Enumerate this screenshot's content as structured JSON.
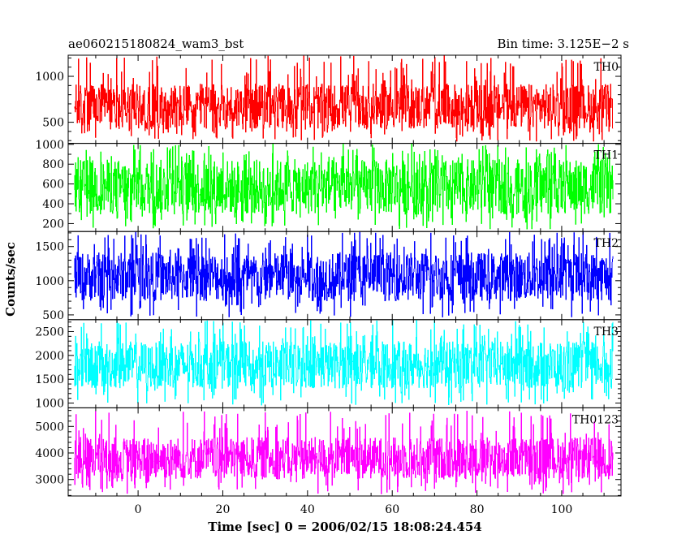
{
  "chart_data": {
    "type": "line",
    "title_left": "ae060215180824_wam3_bst",
    "title_right": "Bin time: 3.125E−2 s",
    "ylabel": "Counts/sec",
    "xlabel": "Time [sec] 0 = 2006/02/15 18:08:24.454",
    "xlim": [
      -16.5,
      114
    ],
    "x_range": [
      -15,
      112
    ],
    "xticks": [
      0,
      20,
      40,
      60,
      80,
      100
    ],
    "xtick_labels": [
      "0",
      "20",
      "40",
      "60",
      "80",
      "100"
    ],
    "panels": [
      {
        "name": "TH0",
        "color": "#ff0000",
        "ylim": [
          270,
          1230
        ],
        "yticks": [
          500,
          1000
        ],
        "yticks_minor_step": 100,
        "ytick_labels": [
          "500",
          "1000"
        ],
        "mean": 650,
        "band_low": 420,
        "band_high": 920,
        "min": 290,
        "max": 1230
      },
      {
        "name": "TH1",
        "color": "#00ff00",
        "ylim": [
          120,
          1010
        ],
        "yticks": [
          200,
          400,
          600,
          800,
          1000
        ],
        "yticks_minor_step": 100,
        "ytick_labels": [
          "200",
          "400",
          "600",
          "800",
          "1000"
        ],
        "mean": 540,
        "band_low": 290,
        "band_high": 850,
        "min": 140,
        "max": 1010
      },
      {
        "name": "TH2",
        "color": "#0000ff",
        "ylim": [
          430,
          1720
        ],
        "yticks": [
          500,
          1000,
          1500
        ],
        "yticks_minor_step": 100,
        "ytick_labels": [
          "500",
          "1000",
          "1500"
        ],
        "mean": 1040,
        "band_low": 700,
        "band_high": 1420,
        "min": 460,
        "max": 1720
      },
      {
        "name": "TH3",
        "color": "#00ffff",
        "ylim": [
          900,
          2750
        ],
        "yticks": [
          1000,
          1500,
          2000,
          2500
        ],
        "yticks_minor_step": 100,
        "ytick_labels": [
          "1000",
          "1500",
          "2000",
          "2500"
        ],
        "mean": 1780,
        "band_low": 1300,
        "band_high": 2300,
        "min": 950,
        "max": 2750
      },
      {
        "name": "TH0123",
        "color": "#ff00ff",
        "ylim": [
          2380,
          5700
        ],
        "yticks": [
          3000,
          4000,
          5000
        ],
        "yticks_minor_step": 200,
        "ytick_labels": [
          "3000",
          "4000",
          "5000"
        ],
        "mean": 3820,
        "band_low": 3000,
        "band_high": 4600,
        "min": 2450,
        "max": 5600
      }
    ]
  }
}
